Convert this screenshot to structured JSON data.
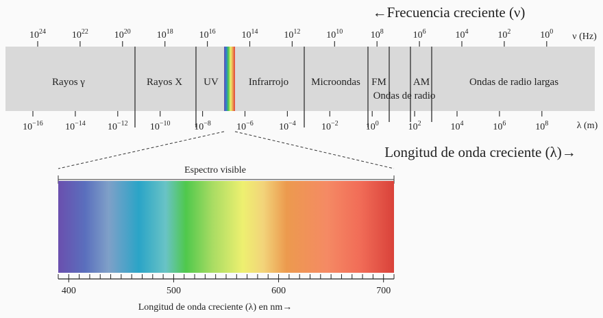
{
  "header": {
    "frequency_label": "←Frecuencia creciente (ν)",
    "wavelength_label": "Longitud de onda creciente (λ)→"
  },
  "top_axis": {
    "unit": "ν (Hz)",
    "ticks": [
      {
        "base": "10",
        "exp": "24"
      },
      {
        "base": "10",
        "exp": "22"
      },
      {
        "base": "10",
        "exp": "20"
      },
      {
        "base": "10",
        "exp": "18"
      },
      {
        "base": "10",
        "exp": "16"
      },
      {
        "base": "10",
        "exp": "14"
      },
      {
        "base": "10",
        "exp": "12"
      },
      {
        "base": "10",
        "exp": "10"
      },
      {
        "base": "10",
        "exp": "8"
      },
      {
        "base": "10",
        "exp": "6"
      },
      {
        "base": "10",
        "exp": "4"
      },
      {
        "base": "10",
        "exp": "2"
      },
      {
        "base": "10",
        "exp": "0"
      }
    ]
  },
  "bottom_axis": {
    "unit": "λ (m)",
    "ticks": [
      {
        "base": "10",
        "exp": "−16"
      },
      {
        "base": "10",
        "exp": "−14"
      },
      {
        "base": "10",
        "exp": "−12"
      },
      {
        "base": "10",
        "exp": "−10"
      },
      {
        "base": "10",
        "exp": "−8"
      },
      {
        "base": "10",
        "exp": "−6"
      },
      {
        "base": "10",
        "exp": "−4"
      },
      {
        "base": "10",
        "exp": "−2"
      },
      {
        "base": "10",
        "exp": "0"
      },
      {
        "base": "10",
        "exp": "2"
      },
      {
        "base": "10",
        "exp": "4"
      },
      {
        "base": "10",
        "exp": "6"
      },
      {
        "base": "10",
        "exp": "8"
      }
    ]
  },
  "bands": {
    "gamma": "Rayos γ",
    "xray": "Rayos X",
    "uv": "UV",
    "infrared": "Infrarrojo",
    "microwave": "Microondas",
    "fm": "FM",
    "radio": "Ondas de radio",
    "am": "AM",
    "long_radio": "Ondas de radio largas"
  },
  "visible": {
    "title": "Espectro visible",
    "axis_label": "Longitud de onda creciente (λ) en nm→",
    "range_nm": [
      390,
      710
    ],
    "tick_labels": [
      "400",
      "500",
      "600",
      "700"
    ]
  },
  "colors": {
    "band_bg": "#d9d9d9",
    "divider": "#444444",
    "violet": "#6a4fae",
    "blue": "#2aa4c7",
    "green": "#63c64f",
    "yellow": "#eef070",
    "orange": "#ec9a4e",
    "red": "#e1403c"
  }
}
